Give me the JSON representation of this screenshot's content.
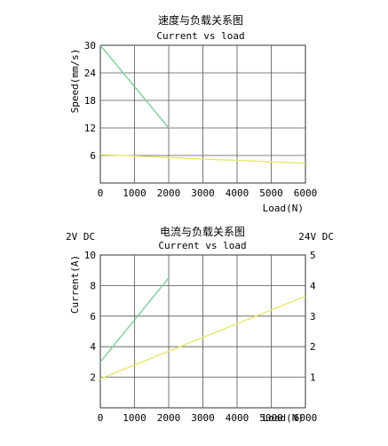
{
  "chart_data": [
    {
      "type": "line",
      "title": "速度与负载关系图",
      "subtitle": "Current vs load",
      "xlabel": "Load(N)",
      "ylabel": "Speed(mm/s)",
      "xlim": [
        0,
        6000
      ],
      "ylim": [
        0,
        30
      ],
      "x_ticks": [
        0,
        1000,
        2000,
        3000,
        4000,
        5000,
        6000
      ],
      "y_ticks": [
        6,
        12,
        18,
        24,
        30
      ],
      "grid": true,
      "series": [
        {
          "color": "#7ccf9a",
          "x": [
            0,
            2000
          ],
          "y": [
            30,
            12
          ]
        },
        {
          "color": "#e6e86a",
          "x": [
            0,
            6000
          ],
          "y": [
            6.2,
            4.3
          ]
        }
      ]
    },
    {
      "type": "line",
      "title": "电流与负载关系图",
      "subtitle": "Current vs load",
      "left_label": "2V DC",
      "right_label": "24V DC",
      "xlabel": "Load(N)",
      "ylabel": "Current(A)",
      "xlim": [
        0,
        6000
      ],
      "ylim": [
        0,
        10
      ],
      "y2lim": [
        0,
        5
      ],
      "x_ticks": [
        0,
        1000,
        2000,
        3000,
        4000,
        5000,
        6000
      ],
      "y_ticks": [
        2,
        4,
        6,
        8,
        10
      ],
      "y2_ticks": [
        1,
        2,
        3,
        4,
        5
      ],
      "grid": true,
      "series": [
        {
          "color": "#7ccf9a",
          "axis": "left",
          "x": [
            0,
            2000
          ],
          "y": [
            3.0,
            8.5
          ]
        },
        {
          "color": "#e6e86a",
          "axis": "right",
          "x": [
            0,
            6000
          ],
          "y": [
            0.95,
            3.65
          ]
        }
      ]
    }
  ]
}
